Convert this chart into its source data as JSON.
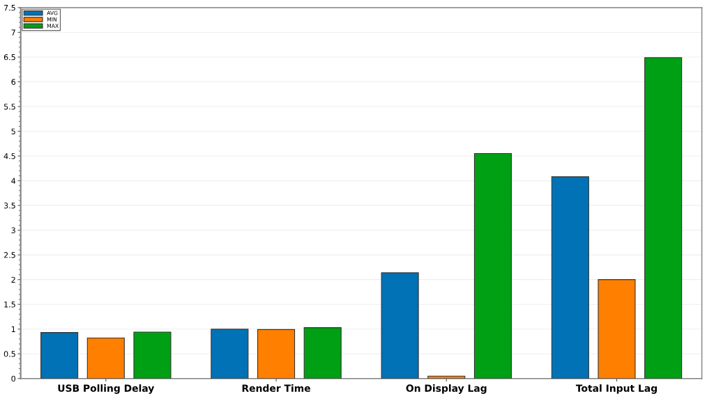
{
  "chart_data": {
    "type": "bar",
    "categories": [
      "USB Polling Delay",
      "Render Time",
      "On Display Lag",
      "Total Input Lag"
    ],
    "series": [
      {
        "name": "AVG",
        "color": "#0072b5",
        "values": [
          0.93,
          1.0,
          2.14,
          4.08
        ]
      },
      {
        "name": "MIN",
        "color": "#ff7f00",
        "values": [
          0.82,
          0.99,
          0.05,
          2.0
        ]
      },
      {
        "name": "MAX",
        "color": "#00a014",
        "values": [
          0.94,
          1.03,
          4.55,
          6.49
        ]
      }
    ],
    "ylim": [
      0,
      7.5
    ],
    "yticks": [
      0,
      0.5,
      1,
      1.5,
      2,
      2.5,
      3,
      3.5,
      4,
      4.5,
      5,
      5.5,
      6,
      6.5,
      7,
      7.5
    ],
    "grid": "y",
    "legend": "top left"
  }
}
